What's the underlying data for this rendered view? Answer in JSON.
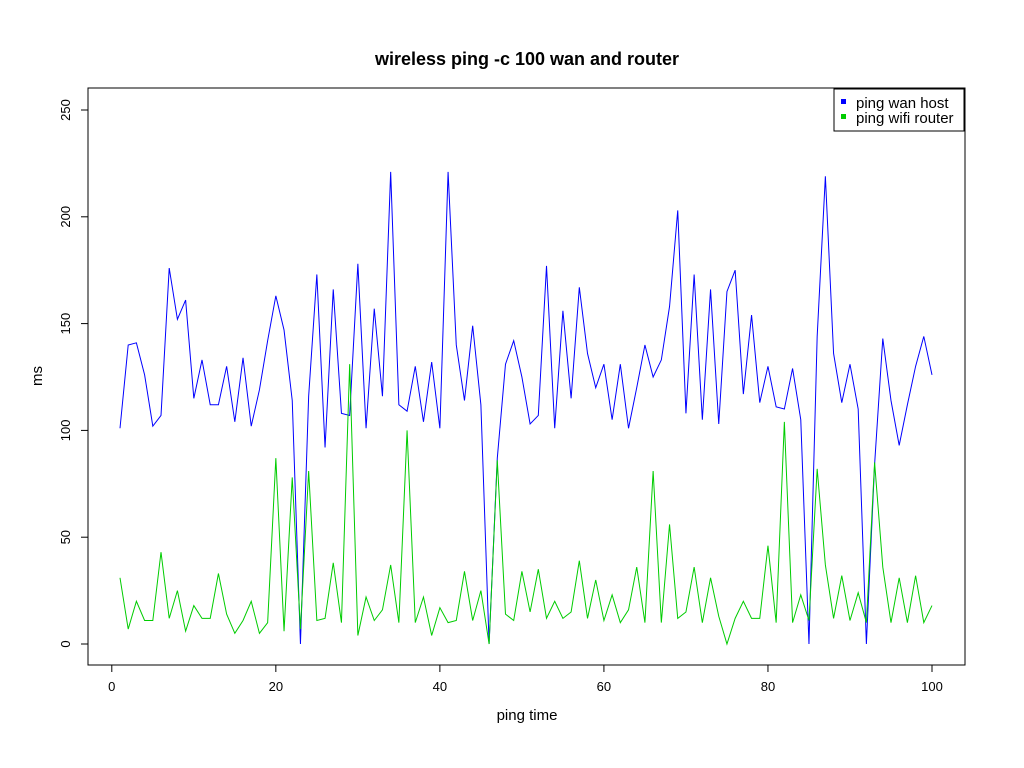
{
  "chart_data": {
    "type": "line",
    "title": "wireless ping -c 100 wan and router",
    "xlabel": "ping time",
    "ylabel": "ms",
    "xlim": [
      1,
      100
    ],
    "ylim": [
      0,
      260
    ],
    "xticks": [
      0,
      20,
      40,
      60,
      80,
      100
    ],
    "yticks": [
      0,
      50,
      100,
      150,
      200,
      250
    ],
    "grid": false,
    "legend_position": "top-right",
    "x": [
      1,
      2,
      3,
      4,
      5,
      6,
      7,
      8,
      9,
      10,
      11,
      12,
      13,
      14,
      15,
      16,
      17,
      18,
      19,
      20,
      21,
      22,
      23,
      24,
      25,
      26,
      27,
      28,
      29,
      30,
      31,
      32,
      33,
      34,
      35,
      36,
      37,
      38,
      39,
      40,
      41,
      42,
      43,
      44,
      45,
      46,
      47,
      48,
      49,
      50,
      51,
      52,
      53,
      54,
      55,
      56,
      57,
      58,
      59,
      60,
      61,
      62,
      63,
      64,
      65,
      66,
      67,
      68,
      69,
      70,
      71,
      72,
      73,
      74,
      75,
      76,
      77,
      78,
      79,
      80,
      81,
      82,
      83,
      84,
      85,
      86,
      87,
      88,
      89,
      90,
      91,
      92,
      93,
      94,
      95,
      96,
      97,
      98,
      99,
      100
    ],
    "series": [
      {
        "name": "ping wan host",
        "color": "#0000ff",
        "values": [
          101,
          140,
          141,
          126,
          102,
          107,
          176,
          152,
          161,
          115,
          133,
          112,
          112,
          130,
          104,
          134,
          102,
          119,
          142,
          163,
          147,
          114,
          0,
          116,
          173,
          92,
          166,
          108,
          107,
          178,
          101,
          157,
          116,
          221,
          112,
          109,
          130,
          104,
          132,
          101,
          221,
          140,
          114,
          149,
          112,
          0,
          87,
          131,
          142,
          125,
          103,
          107,
          177,
          101,
          156,
          115,
          167,
          136,
          120,
          131,
          105,
          131,
          101,
          120,
          140,
          125,
          133,
          158,
          203,
          108,
          173,
          105,
          166,
          103,
          165,
          175,
          117,
          154,
          113,
          130,
          111,
          110,
          129,
          105,
          0,
          144,
          219,
          136,
          113,
          131,
          110,
          0,
          84,
          143,
          114,
          93,
          112,
          130,
          144,
          126
        ]
      },
      {
        "name": "ping wifi router",
        "color": "#00cc00",
        "values": [
          31,
          7,
          20,
          11,
          11,
          43,
          12,
          25,
          6,
          18,
          12,
          12,
          33,
          14,
          5,
          11,
          20,
          5,
          10,
          87,
          6,
          78,
          7,
          81,
          11,
          12,
          38,
          10,
          131,
          4,
          22,
          11,
          16,
          37,
          10,
          100,
          10,
          22,
          4,
          17,
          10,
          11,
          34,
          11,
          25,
          0,
          86,
          14,
          11,
          34,
          15,
          35,
          12,
          20,
          12,
          15,
          39,
          12,
          30,
          11,
          23,
          10,
          16,
          36,
          10,
          81,
          10,
          56,
          12,
          15,
          36,
          10,
          31,
          13,
          0,
          12,
          20,
          12,
          12,
          46,
          10,
          104,
          10,
          23,
          11,
          82,
          37,
          12,
          32,
          11,
          24,
          10,
          85,
          36,
          10,
          31,
          10,
          32,
          10,
          18
        ]
      }
    ]
  }
}
